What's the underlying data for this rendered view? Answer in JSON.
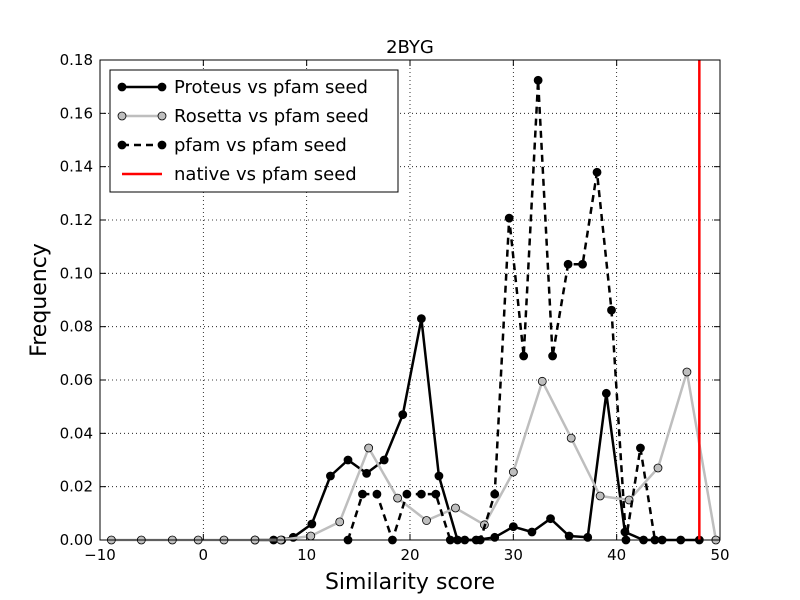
{
  "chart_data": {
    "type": "line",
    "title": "2BYG",
    "xlabel": "Similarity score",
    "ylabel": "Frequency",
    "xlim": [
      -10,
      50
    ],
    "ylim": [
      0,
      0.18
    ],
    "xticks": [
      -10,
      0,
      10,
      20,
      30,
      40,
      50
    ],
    "xtick_labels": [
      "−10",
      "0",
      "10",
      "20",
      "30",
      "40",
      "50"
    ],
    "yticks": [
      0,
      0.02,
      0.04,
      0.06,
      0.08,
      0.1,
      0.12,
      0.14,
      0.16,
      0.18
    ],
    "ytick_labels": [
      "0.00",
      "0.02",
      "0.04",
      "0.06",
      "0.08",
      "0.10",
      "0.12",
      "0.14",
      "0.16",
      "0.18"
    ],
    "grid": true,
    "legend_position": "top-left",
    "series": [
      {
        "name": "Proteus vs pfam seed",
        "color": "#000000",
        "marker_fill": "#000000",
        "dashed": false,
        "x": [
          5.0,
          6.8,
          7.6,
          8.7,
          10.5,
          12.3,
          14.0,
          15.8,
          17.5,
          19.3,
          21.1,
          22.8,
          24.6,
          26.4,
          28.2,
          30.0,
          31.8,
          33.6,
          35.4,
          37.2,
          39.0,
          40.8,
          42.6,
          44.4,
          46.2,
          48.0
        ],
        "y": [
          0.0,
          0.0,
          0.0,
          0.001,
          0.006,
          0.024,
          0.03,
          0.025,
          0.03,
          0.047,
          0.083,
          0.024,
          0.0,
          0.0,
          0.001,
          0.005,
          0.003,
          0.008,
          0.0015,
          0.001,
          0.055,
          0.003,
          0.0,
          0.0,
          0.0,
          0.0
        ]
      },
      {
        "name": "Rosetta vs pfam seed",
        "color": "#bebebe",
        "marker_fill": "#bebebe",
        "dashed": false,
        "x": [
          -8.9,
          -6.0,
          -3.0,
          -0.5,
          2.0,
          5.0,
          7.5,
          10.4,
          13.2,
          16.0,
          18.8,
          21.6,
          24.4,
          27.2,
          30.0,
          32.8,
          35.6,
          38.4,
          41.2,
          44.0,
          46.8,
          49.6
        ],
        "y": [
          0.0,
          0.0,
          0.0,
          0.0,
          0.0,
          0.0,
          0.0,
          0.0015,
          0.0068,
          0.0345,
          0.0157,
          0.0073,
          0.012,
          0.0057,
          0.0255,
          0.0595,
          0.0382,
          0.0165,
          0.015,
          0.027,
          0.063,
          0.0
        ]
      },
      {
        "name": "pfam vs pfam seed",
        "color": "#000000",
        "marker_fill": "#000000",
        "dashed": true,
        "x": [
          14.0,
          15.4,
          16.8,
          18.3,
          19.7,
          21.1,
          22.5,
          23.9,
          25.3,
          26.8,
          28.2,
          29.6,
          31.0,
          32.4,
          33.8,
          35.3,
          36.7,
          38.1,
          39.5,
          40.9,
          42.3,
          43.7
        ],
        "y": [
          0.0,
          0.0172,
          0.0172,
          0.0,
          0.0172,
          0.0172,
          0.0172,
          0.0,
          0.0,
          0.0,
          0.0172,
          0.1207,
          0.069,
          0.1724,
          0.069,
          0.1034,
          0.1034,
          0.1379,
          0.0862,
          0.0,
          0.0345,
          0.0
        ]
      },
      {
        "name": "native vs pfam seed",
        "color": "#ff0000",
        "type": "vline",
        "x": 48.0
      }
    ]
  }
}
